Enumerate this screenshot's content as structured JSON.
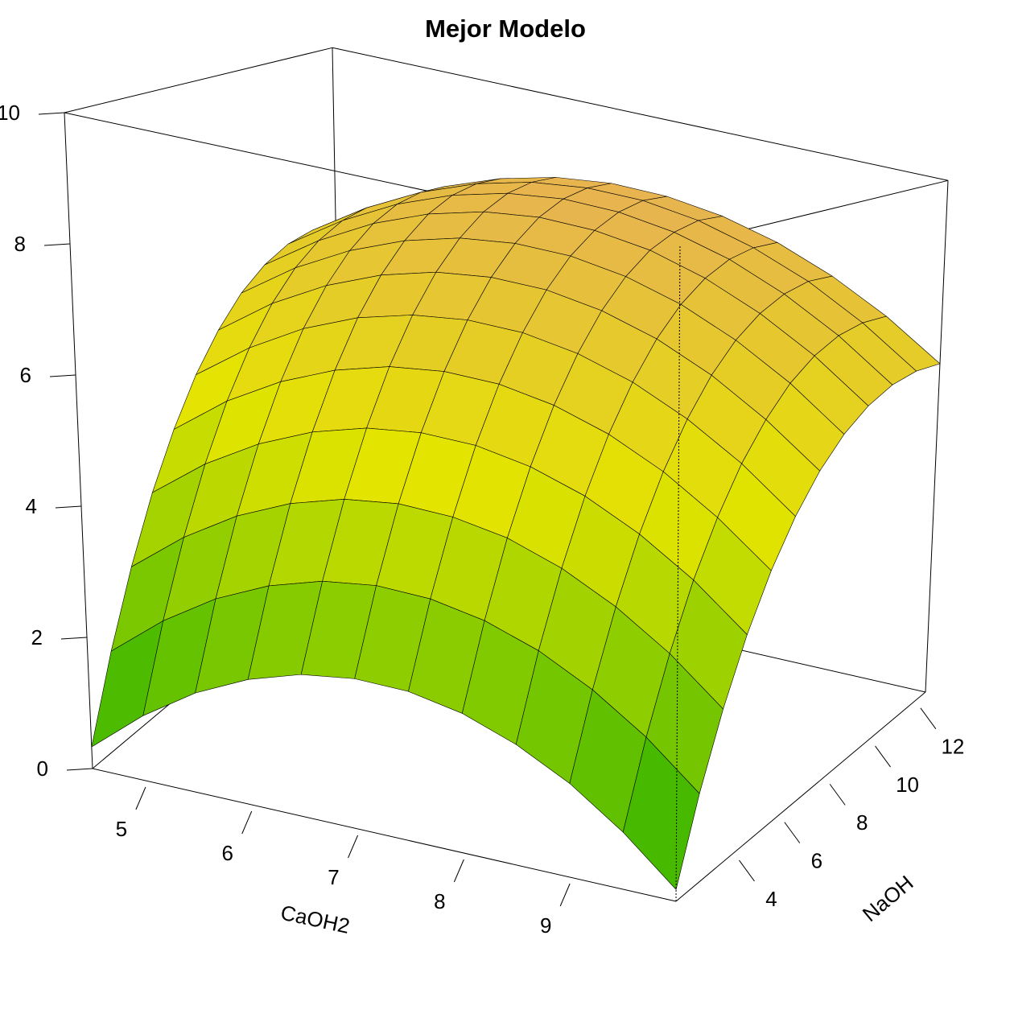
{
  "chart_data": {
    "type": "surface",
    "title": "Mejor Modelo",
    "xlabel": "CaOH2",
    "ylabel": "NaOH",
    "x": [
      4.5,
      5,
      5.5,
      6,
      6.5,
      7,
      7.5,
      8,
      8.5,
      9,
      9.5,
      10
    ],
    "y": [
      1.5,
      2.5,
      3.5,
      4.5,
      5.5,
      6.5,
      7.5,
      8.5,
      9.5,
      10.5,
      11.5,
      12.5
    ],
    "z": [
      [
        0.33,
        0.99,
        1.52,
        1.91,
        2.17,
        2.29,
        2.28,
        2.13,
        1.84,
        1.43,
        0.87,
        0.18
      ],
      [
        1.53,
        2.19,
        2.72,
        3.11,
        3.37,
        3.49,
        3.47,
        3.32,
        3.04,
        2.62,
        2.07,
        1.38
      ],
      [
        2.6,
        3.26,
        3.79,
        4.18,
        4.44,
        4.56,
        4.54,
        4.4,
        4.11,
        3.69,
        3.14,
        2.45
      ],
      [
        3.55,
        4.21,
        4.73,
        5.12,
        5.38,
        5.5,
        5.49,
        5.34,
        5.06,
        4.64,
        4.09,
        3.4
      ],
      [
        4.36,
        5.03,
        5.55,
        5.94,
        6.2,
        6.32,
        6.31,
        6.16,
        5.88,
        5.46,
        4.9,
        4.22
      ],
      [
        5.06,
        5.72,
        6.25,
        6.64,
        6.89,
        7.01,
        7,
        6.85,
        6.57,
        6.15,
        5.6,
        4.91
      ],
      [
        5.62,
        6.29,
        6.81,
        7.2,
        7.46,
        7.58,
        7.57,
        7.42,
        7.14,
        6.72,
        6.16,
        5.48
      ],
      [
        6.07,
        6.73,
        7.25,
        7.64,
        7.9,
        8.02,
        8.01,
        7.86,
        7.58,
        7.16,
        6.61,
        5.92
      ],
      [
        6.38,
        7.04,
        7.57,
        7.96,
        8.22,
        8.34,
        8.32,
        8.18,
        7.89,
        7.47,
        6.92,
        6.23
      ],
      [
        6.57,
        7.23,
        7.76,
        8.15,
        8.41,
        8.53,
        8.51,
        8.36,
        8.08,
        7.66,
        7.11,
        6.42
      ],
      [
        6.63,
        7.29,
        7.82,
        8.21,
        8.47,
        8.59,
        8.58,
        8.43,
        8.14,
        7.73,
        7.17,
        6.48
      ],
      [
        6.57,
        7.23,
        7.76,
        8.15,
        8.41,
        8.53,
        8.51,
        8.36,
        8.08,
        7.66,
        7.11,
        6.42
      ]
    ],
    "xlim": [
      4.5,
      10
    ],
    "ylim": [
      1.5,
      12.5
    ],
    "zlim": [
      0,
      10
    ],
    "xticks": [
      5,
      6,
      7,
      8,
      9
    ],
    "yticks": [
      4,
      6,
      8,
      10,
      12
    ],
    "zticks": [
      0,
      2,
      4,
      6,
      8,
      10
    ],
    "colors": [
      "#1aae00",
      "#e4e400",
      "#e8a070"
    ]
  }
}
